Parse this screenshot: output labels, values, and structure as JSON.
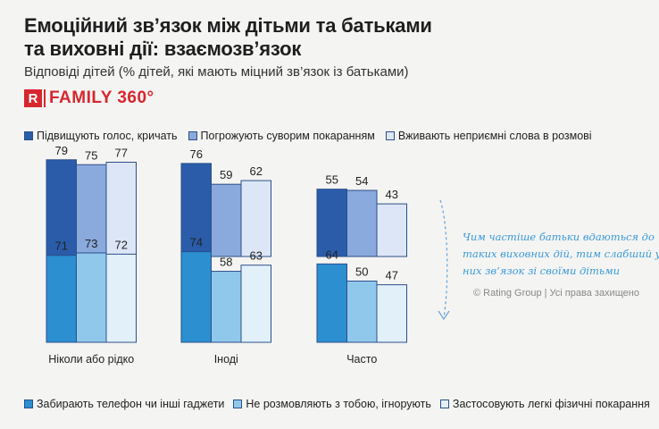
{
  "title_line1": "Емоційний зв’язок між дітьми та батьками",
  "title_line2": "та виховні дії: взаємозв’язок",
  "subtitle": "Відповіді дітей (% дітей, які мають міцний зв’язок із батьками)",
  "logo": {
    "mark": "R",
    "text": "FAMILY 360°"
  },
  "annotation": {
    "line1": "Чим частіше батьки вдаються до",
    "line2": "таких виховних дій, тим слабший у",
    "line3": "них зв’язок зі своїми дітьми"
  },
  "copyright": "© Rating Group | Усі права захищено",
  "chart_data": {
    "type": "bar",
    "title": "Емоційний зв’язок між дітьми та батьками та виховні дії: взаємозв’язок",
    "ylabel": "% дітей, які мають міцний зв’язок із батьками",
    "categories": [
      "Ніколи або рідко",
      "Іноді",
      "Часто"
    ],
    "ylim": [
      0,
      100
    ],
    "top_group": {
      "series": [
        {
          "name": "Підвищують голос, кричать",
          "color": "#2a5caa",
          "values": [
            79,
            76,
            55
          ]
        },
        {
          "name": "Погрожують суворим покаранням",
          "color": "#8aa9dc",
          "values": [
            75,
            59,
            54
          ]
        },
        {
          "name": "Вживають неприємні слова в розмові",
          "color": "#dde6f6",
          "values": [
            77,
            62,
            43
          ]
        }
      ]
    },
    "bottom_group": {
      "series": [
        {
          "name": "Забирають телефон чи інші гаджети",
          "color": "#2b8fd0",
          "values": [
            71,
            74,
            64
          ]
        },
        {
          "name": "Не розмовляють з тобою, ігнорують",
          "color": "#90c8ec",
          "values": [
            73,
            58,
            50
          ]
        },
        {
          "name": "Застосовують легкі фізичні покарання",
          "color": "#e2f0fa",
          "values": [
            72,
            63,
            47
          ]
        }
      ]
    }
  }
}
